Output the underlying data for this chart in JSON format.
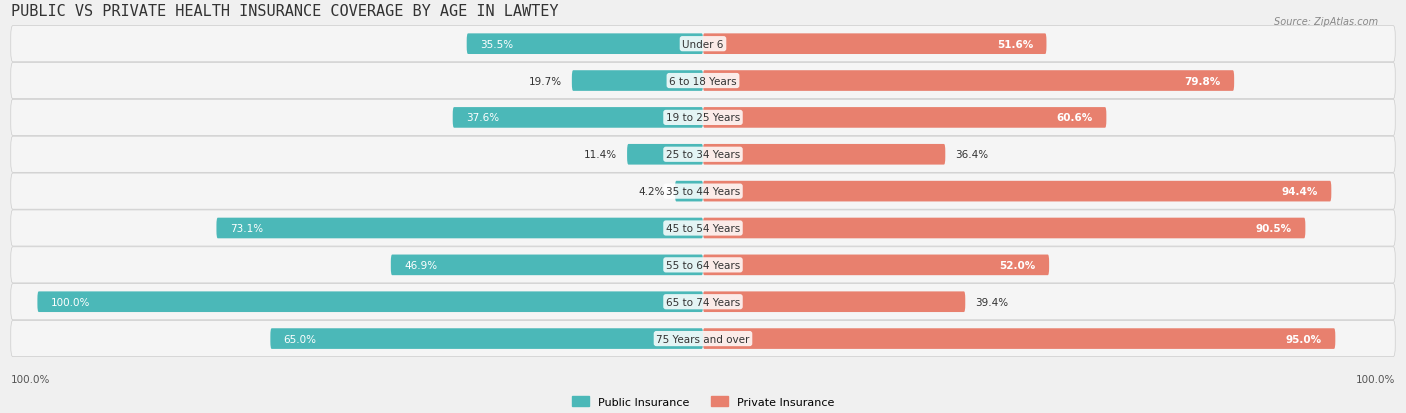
{
  "title": "PUBLIC VS PRIVATE HEALTH INSURANCE COVERAGE BY AGE IN LAWTEY",
  "source": "Source: ZipAtlas.com",
  "categories": [
    "Under 6",
    "6 to 18 Years",
    "19 to 25 Years",
    "25 to 34 Years",
    "35 to 44 Years",
    "45 to 54 Years",
    "55 to 64 Years",
    "65 to 74 Years",
    "75 Years and over"
  ],
  "public_values": [
    35.5,
    19.7,
    37.6,
    11.4,
    4.2,
    73.1,
    46.9,
    100.0,
    65.0
  ],
  "private_values": [
    51.6,
    79.8,
    60.6,
    36.4,
    94.4,
    90.5,
    52.0,
    39.4,
    95.0
  ],
  "public_color": "#4bb8b8",
  "private_color": "#e8806e",
  "public_color_light": "#6dcfcf",
  "private_color_light": "#f0a898",
  "background_color": "#f0f0f0",
  "bar_bg_color": "#e8e8e8",
  "row_bg_color": "#f5f5f5",
  "max_value": 100.0,
  "bar_height": 0.55,
  "title_fontsize": 11,
  "label_fontsize": 7.5,
  "category_fontsize": 7.5,
  "legend_fontsize": 8,
  "source_fontsize": 7
}
